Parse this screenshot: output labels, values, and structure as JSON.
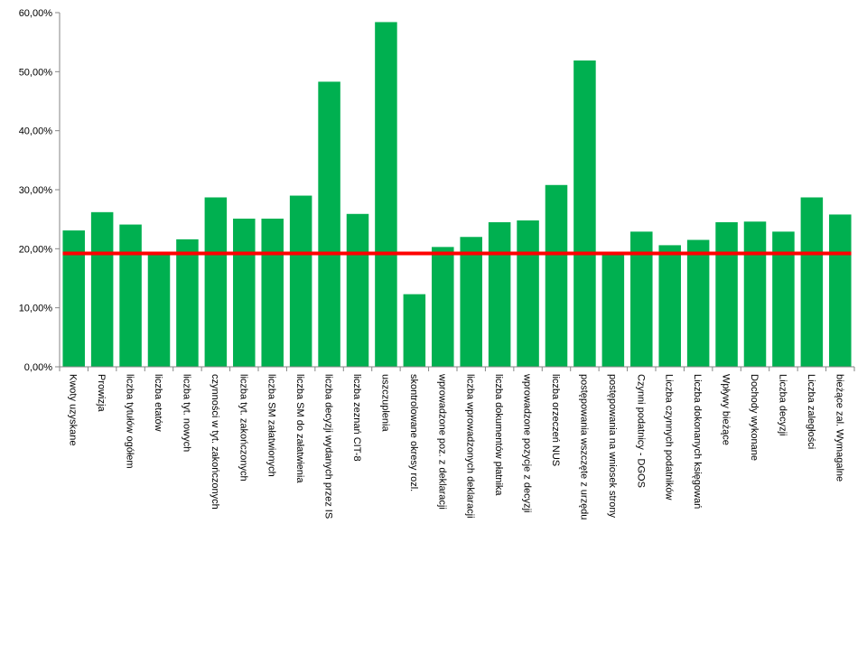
{
  "chart_data": {
    "type": "bar",
    "title": "",
    "xlabel": "",
    "ylabel": "",
    "ylim": [
      0,
      0.6
    ],
    "y_ticks": [
      0,
      0.1,
      0.2,
      0.3,
      0.4,
      0.5,
      0.6
    ],
    "y_tick_labels": [
      "0,00%",
      "10,00%",
      "20,00%",
      "30,00%",
      "40,00%",
      "50,00%",
      "60,00%"
    ],
    "grid": false,
    "legend": "none",
    "categories": [
      "Kwoty uzyskane",
      "Prowizja",
      "liczba tytułów ogółem",
      "liczba etatów",
      "liczba tyt. nowych",
      "czynności w tyt. zakończonych",
      "liczba tyt. zakończonych",
      "liczba SM załatwionych",
      "liczba SM do załatwienia",
      "liczba decyzji wydanych przez IS",
      "liczba zeznań CIT-8",
      "uszczuplenia",
      "skontrolowane okresy rozl.",
      "wprowadzone poz. z deklaracji",
      "liczba wprowadzonych deklaracji",
      "liczba dokumentów płatnika",
      "wprowadzone pozycje z decyzji",
      "liczba orzeczeń NUS",
      "postępowania wszczęte z urzędu",
      "postępowania na wniosek strony",
      "Czynni podatnicy - DGOS",
      "Liczba czynnych podatników",
      "Liczba dokonanych księgowań",
      "Wpływy bieżące",
      "Dochody wykonane",
      "Liczba decyzji",
      "Liczba zaległości",
      "bieżące zal. Wymagalne"
    ],
    "values": [
      0.231,
      0.262,
      0.241,
      0.192,
      0.216,
      0.287,
      0.251,
      0.251,
      0.29,
      0.483,
      0.259,
      0.584,
      0.123,
      0.203,
      0.22,
      0.245,
      0.248,
      0.308,
      0.519,
      0.192,
      0.229,
      0.206,
      0.215,
      0.245,
      0.246,
      0.229,
      0.287,
      0.258
    ],
    "reference_line": 0.192,
    "colors": {
      "bar": "#00b050",
      "reference_line": "#ff0000",
      "axis": "#868686"
    }
  }
}
